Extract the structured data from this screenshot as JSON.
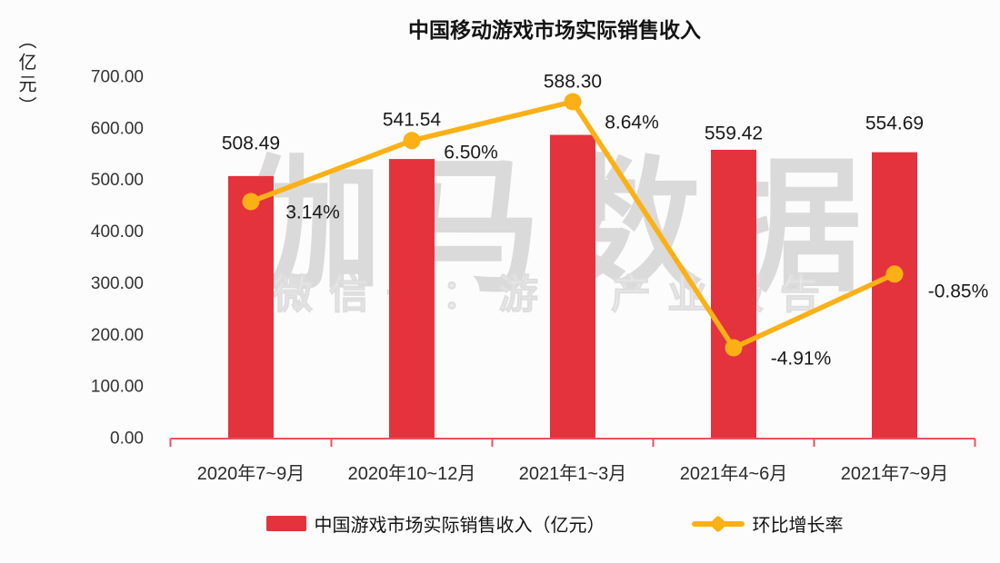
{
  "title": "中国移动游戏市场实际销售收入",
  "y_axis_unit": "（亿元）",
  "watermark": {
    "main": "伽马数据",
    "sub": "微信号：游戏产业报告"
  },
  "legend": {
    "bar_label": "中国游戏市场实际销售收入（亿元）",
    "line_label": "环比增长率"
  },
  "colors": {
    "bar": "#e5333d",
    "line": "#fbb016",
    "axis": "#e8525b",
    "label": "#1a1a1a",
    "tick_text": "#333333",
    "watermark_main": "#dadada",
    "watermark_sub": "#ececec",
    "background": "#fcfcfc"
  },
  "chart_data": {
    "type": "bar",
    "subtype": "bar+line combo",
    "title": "中国移动游戏市场实际销售收入",
    "ylabel": "（亿元）",
    "xlabel": "",
    "ylim": [
      0,
      700
    ],
    "y_tick_step": 100,
    "y_ticks": [
      "0.00",
      "100.00",
      "200.00",
      "300.00",
      "400.00",
      "500.00",
      "600.00",
      "700.00"
    ],
    "grid": false,
    "legend_position": "bottom",
    "categories": [
      "2020年7~9月",
      "2020年10~12月",
      "2021年1~3月",
      "2021年4~6月",
      "2021年7~9月"
    ],
    "series": [
      {
        "name": "中国游戏市场实际销售收入（亿元）",
        "type": "bar",
        "axis": "primary",
        "values": [
          508.49,
          541.54,
          588.3,
          559.42,
          554.69
        ],
        "labels": [
          "508.49",
          "541.54",
          "588.30",
          "559.42",
          "554.69"
        ]
      },
      {
        "name": "环比增长率",
        "type": "line",
        "axis": "secondary",
        "values": [
          3.14,
          6.5,
          8.64,
          -4.91,
          -0.85
        ],
        "labels": [
          "3.14%",
          "6.50%",
          "8.64%",
          "-4.91%",
          "-0.85%"
        ]
      }
    ]
  }
}
